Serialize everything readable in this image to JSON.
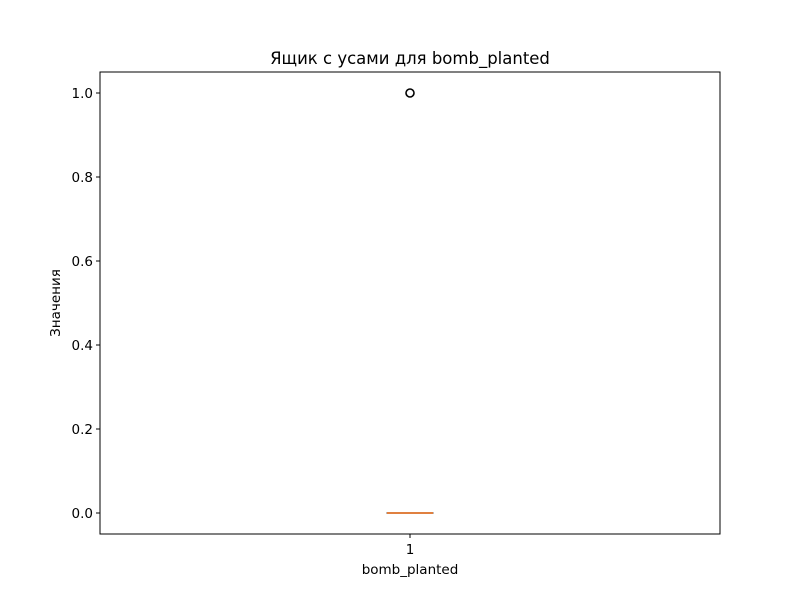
{
  "chart_data": {
    "type": "box",
    "title": "Ящик с усами для bomb_planted",
    "xlabel": "bomb_planted",
    "ylabel": "Значения",
    "categories": [
      "1"
    ],
    "ylim": [
      -0.05,
      1.05
    ],
    "yticks": [
      "0.0",
      "0.2",
      "0.4",
      "0.6",
      "0.8",
      "1.0"
    ],
    "ytick_values": [
      0.0,
      0.2,
      0.4,
      0.6,
      0.8,
      1.0
    ],
    "boxes": [
      {
        "category": "1",
        "whisker_low": 0.0,
        "q1": 0.0,
        "median": 0.0,
        "q3": 0.0,
        "whisker_high": 0.0,
        "outliers": [
          1.0
        ]
      }
    ],
    "grid": false,
    "colors": {
      "box": "#000000",
      "median": "#e08040",
      "outlier": "#000000"
    }
  }
}
